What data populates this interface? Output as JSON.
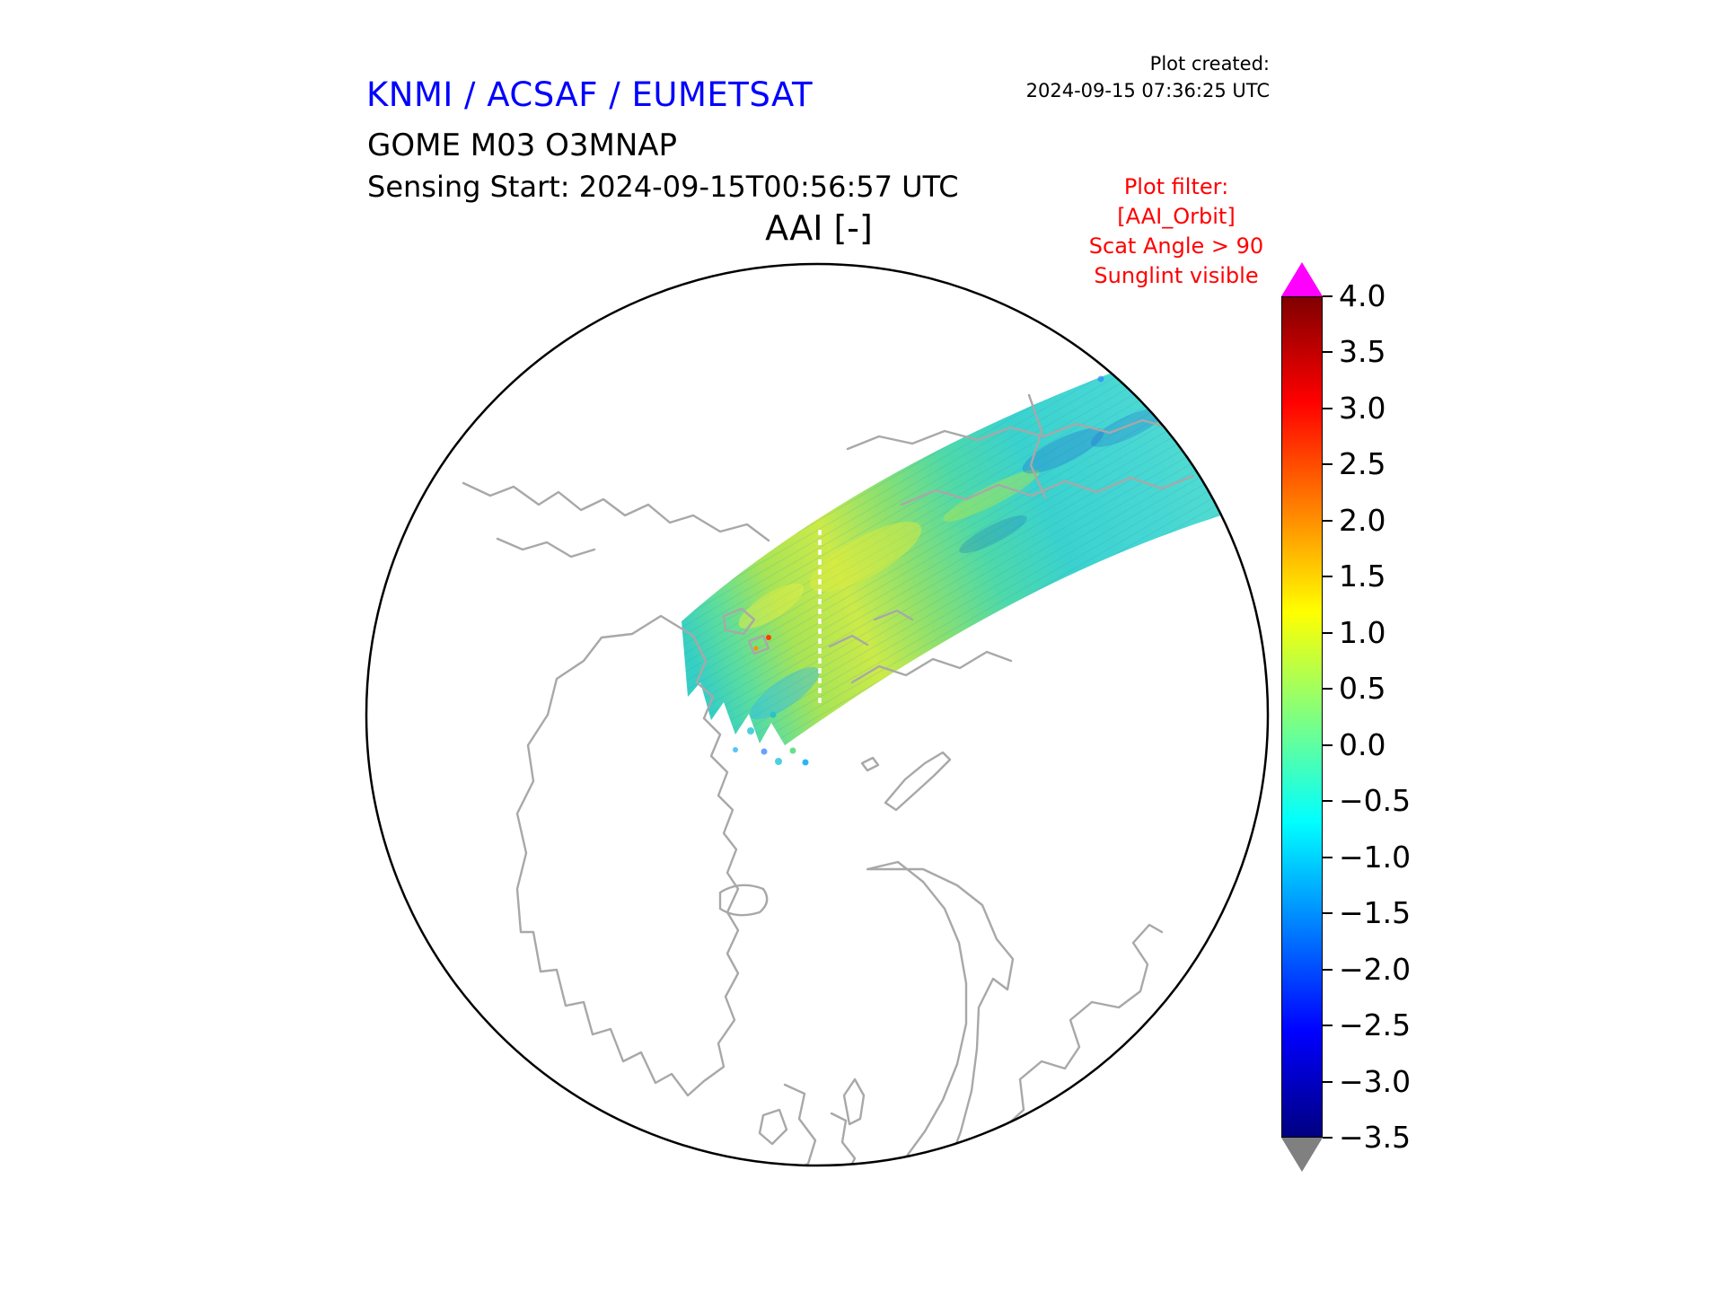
{
  "header": {
    "org_title": "KNMI / ACSAF / EUMETSAT",
    "org_title_color": "#0000ff",
    "created_label": "Plot created:",
    "created_value": "2024-09-15 07:36:25 UTC",
    "product_line": "GOME M03 O3MNAP",
    "sensing_line": "Sensing Start: 2024-09-15T00:56:57 UTC"
  },
  "plot": {
    "title": "AAI [-]",
    "filter": {
      "color": "#ff0000",
      "lines": [
        "Plot filter:",
        "[AAI_Orbit]",
        "Scat Angle > 90",
        "Sunglint visible"
      ]
    }
  },
  "chart_data": {
    "type": "heatmap",
    "subtype": "satellite-orbit-swath-on-polar-map",
    "title": "AAI [-]",
    "map": {
      "projection": "north-polar-stereographic",
      "outline_shape": "circle",
      "coastline_color": "#a8a8a8"
    },
    "swath": {
      "description": "Single orbit swath of AAI values crossing the Arctic from the upper-right limb toward the pole, with a white no-data gap line",
      "approx_value_range": [
        -1.5,
        1.5
      ],
      "dominant_colors": [
        "#3ad2cd",
        "#66e08a",
        "#ccea48"
      ]
    },
    "colorbar": {
      "orientation": "vertical",
      "min": -3.5,
      "max": 4.0,
      "tick_step": 0.5,
      "tick_values": [
        4.0,
        3.5,
        3.0,
        2.5,
        2.0,
        1.5,
        1.0,
        0.5,
        0.0,
        -0.5,
        -1.0,
        -1.5,
        -2.0,
        -2.5,
        -3.0,
        -3.5
      ],
      "tick_labels": [
        "4.0",
        "3.5",
        "3.0",
        "2.5",
        "2.0",
        "1.5",
        "1.0",
        "0.5",
        "0.0",
        "−0.5",
        "−1.0",
        "−1.5",
        "−2.0",
        "−2.5",
        "−3.0",
        "−3.5"
      ],
      "gradient_top_to_bottom": [
        "#800000",
        "#ff0000",
        "#ffff00",
        "#00ffff",
        "#0000ff",
        "#000080"
      ],
      "gradient_offsets_pct": [
        0,
        12.5,
        37.5,
        62.5,
        87.5,
        100
      ],
      "over_arrow_color": "#ff00ff",
      "under_arrow_color": "#808080"
    }
  }
}
